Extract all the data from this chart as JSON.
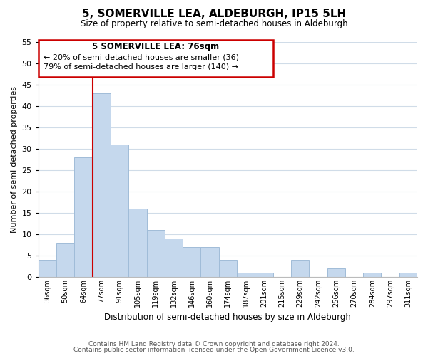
{
  "title": "5, SOMERVILLE LEA, ALDEBURGH, IP15 5LH",
  "subtitle": "Size of property relative to semi-detached houses in Aldeburgh",
  "xlabel": "Distribution of semi-detached houses by size in Aldeburgh",
  "ylabel": "Number of semi-detached properties",
  "categories": [
    "36sqm",
    "50sqm",
    "64sqm",
    "77sqm",
    "91sqm",
    "105sqm",
    "119sqm",
    "132sqm",
    "146sqm",
    "160sqm",
    "174sqm",
    "187sqm",
    "201sqm",
    "215sqm",
    "229sqm",
    "242sqm",
    "256sqm",
    "270sqm",
    "284sqm",
    "297sqm",
    "311sqm"
  ],
  "values": [
    4,
    8,
    28,
    43,
    31,
    16,
    11,
    9,
    7,
    7,
    4,
    1,
    1,
    0,
    4,
    0,
    2,
    0,
    1,
    0,
    1
  ],
  "bar_color": "#c5d8ed",
  "bar_edge_color": "#a0bcd8",
  "ylim": [
    0,
    55
  ],
  "yticks": [
    0,
    5,
    10,
    15,
    20,
    25,
    30,
    35,
    40,
    45,
    50,
    55
  ],
  "property_label": "5 SOMERVILLE LEA: 76sqm",
  "vline_color": "#cc0000",
  "annotation_line1": "← 20% of semi-detached houses are smaller (36)",
  "annotation_line2": "79% of semi-detached houses are larger (140) →",
  "box_color": "#ffffff",
  "box_edge_color": "#cc0000",
  "footnote1": "Contains HM Land Registry data © Crown copyright and database right 2024.",
  "footnote2": "Contains public sector information licensed under the Open Government Licence v3.0.",
  "bg_color": "#ffffff",
  "grid_color": "#d0dce8"
}
